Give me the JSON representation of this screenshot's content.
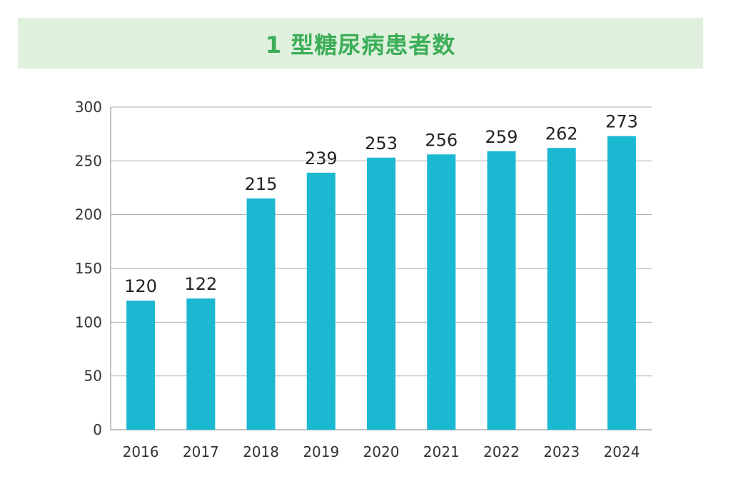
{
  "chart_data": {
    "type": "bar",
    "title": "1 型糖尿病患者数",
    "categories": [
      "2016",
      "2017",
      "2018",
      "2019",
      "2020",
      "2021",
      "2022",
      "2023",
      "2024"
    ],
    "values": [
      120,
      122,
      215,
      239,
      253,
      256,
      259,
      262,
      273
    ],
    "xlabel": "",
    "ylabel": "",
    "ylim": [
      0,
      300
    ],
    "yticks": [
      0,
      50,
      100,
      150,
      200,
      250,
      300
    ],
    "grid": true,
    "bar_color": "#1bb8d2",
    "title_color": "#3cae58",
    "title_background": "#dff0dd"
  }
}
